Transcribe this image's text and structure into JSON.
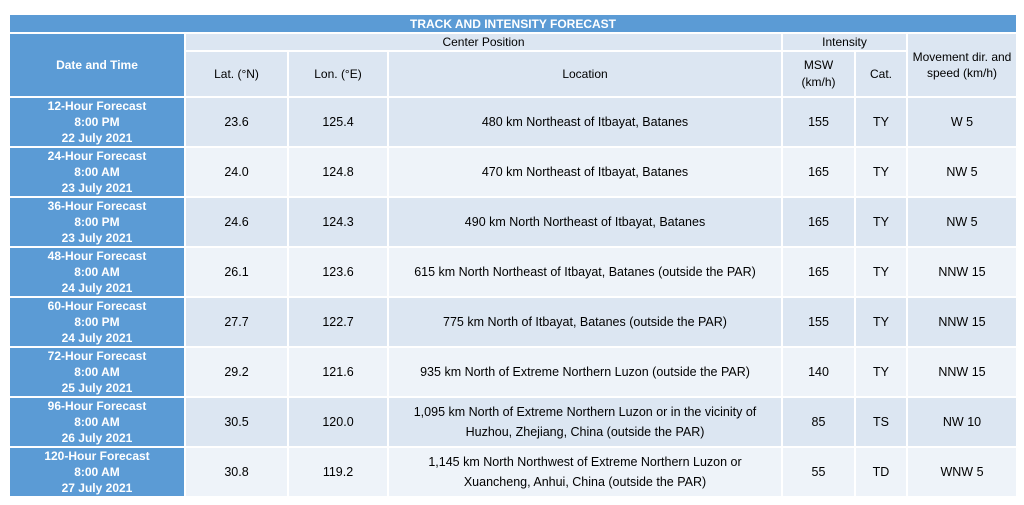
{
  "title": "TRACK AND INTENSITY FORECAST",
  "headers": {
    "date_time": "Date and Time",
    "center_position": "Center Position",
    "intensity": "Intensity",
    "movement": "Movement dir. and speed (km/h)",
    "lat": "Lat. (°N)",
    "lon": "Lon. (°E)",
    "location": "Location",
    "msw": "MSW (km/h)",
    "cat": "Cat."
  },
  "rows": [
    {
      "forecast": "12-Hour Forecast",
      "time": "8:00 PM",
      "date": "22 July 2021",
      "lat": "23.6",
      "lon": "125.4",
      "location": "480 km Northeast of Itbayat, Batanes",
      "msw": "155",
      "cat": "TY",
      "movement": "W 5"
    },
    {
      "forecast": "24-Hour Forecast",
      "time": "8:00 AM",
      "date": "23 July 2021",
      "lat": "24.0",
      "lon": "124.8",
      "location": "470 km Northeast of Itbayat, Batanes",
      "msw": "165",
      "cat": "TY",
      "movement": "NW 5"
    },
    {
      "forecast": "36-Hour Forecast",
      "time": "8:00 PM",
      "date": "23 July 2021",
      "lat": "24.6",
      "lon": "124.3",
      "location": "490 km North Northeast of Itbayat, Batanes",
      "msw": "165",
      "cat": "TY",
      "movement": "NW 5"
    },
    {
      "forecast": "48-Hour Forecast",
      "time": "8:00 AM",
      "date": "24 July 2021",
      "lat": "26.1",
      "lon": "123.6",
      "location": "615 km North Northeast of Itbayat, Batanes (outside the PAR)",
      "msw": "165",
      "cat": "TY",
      "movement": "NNW 15"
    },
    {
      "forecast": "60-Hour Forecast",
      "time": "8:00 PM",
      "date": "24 July 2021",
      "lat": "27.7",
      "lon": "122.7",
      "location": "775 km North of Itbayat, Batanes (outside the PAR)",
      "msw": "155",
      "cat": "TY",
      "movement": "NNW 15"
    },
    {
      "forecast": "72-Hour Forecast",
      "time": "8:00 AM",
      "date": "25 July 2021",
      "lat": "29.2",
      "lon": "121.6",
      "location": "935 km North of Extreme Northern Luzon (outside the PAR)",
      "msw": "140",
      "cat": "TY",
      "movement": "NNW 15"
    },
    {
      "forecast": "96-Hour Forecast",
      "time": "8:00 AM",
      "date": "26 July 2021",
      "lat": "30.5",
      "lon": "120.0",
      "location": "1,095 km North of Extreme Northern Luzon or in the vicinity of Huzhou, Zhejiang, China (outside the PAR)",
      "msw": "85",
      "cat": "TS",
      "movement": "NW 10"
    },
    {
      "forecast": "120-Hour Forecast",
      "time": "8:00 AM",
      "date": "27 July 2021",
      "lat": "30.8",
      "lon": "119.2",
      "location": "1,145 km North Northwest of Extreme Northern Luzon or Xuancheng, Anhui, China (outside the PAR)",
      "msw": "55",
      "cat": "TD",
      "movement": "WNW 5"
    }
  ],
  "colors": {
    "header_blue": "#5b9bd5",
    "light_row": "#dce6f2",
    "lighter_row": "#eef3f9"
  }
}
